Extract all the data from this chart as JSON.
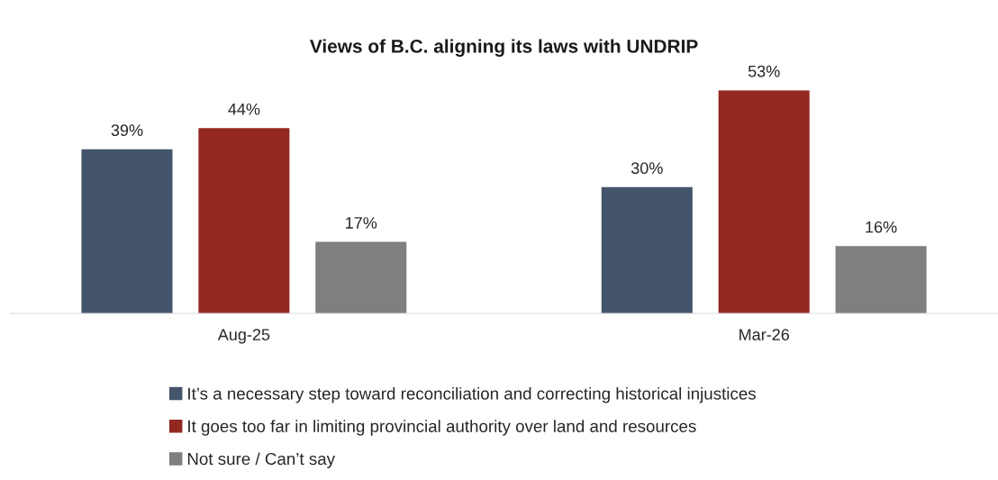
{
  "chart_data": {
    "type": "bar",
    "title": "Views of B.C. aligning its laws with UNDRIP",
    "categories": [
      "Aug-25",
      "Mar-26"
    ],
    "series": [
      {
        "name": "It’s a necessary step toward reconciliation and correcting historical injustices",
        "color": "#44546a",
        "values": [
          39,
          30
        ],
        "value_labels": [
          "39%",
          "30%"
        ]
      },
      {
        "name": "It goes too far in limiting provincial authority over land and resources",
        "color": "#922820",
        "values": [
          44,
          53
        ],
        "value_labels": [
          "44%",
          "53%"
        ]
      },
      {
        "name": "Not sure / Can’t say",
        "color": "#7f7f7f",
        "values": [
          17,
          16
        ],
        "value_labels": [
          "17%",
          "16%"
        ]
      }
    ],
    "legend": "bottom",
    "grid": false
  }
}
